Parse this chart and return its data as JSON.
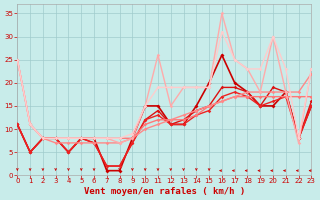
{
  "background_color": "#c8ecea",
  "grid_color": "#a0cccc",
  "x_min": 0,
  "x_max": 23,
  "y_min": 0,
  "y_max": 37,
  "y_ticks": [
    0,
    5,
    10,
    15,
    20,
    25,
    30,
    35
  ],
  "x_ticks": [
    0,
    1,
    2,
    3,
    4,
    5,
    6,
    7,
    8,
    9,
    10,
    11,
    12,
    13,
    14,
    15,
    16,
    17,
    18,
    19,
    20,
    21,
    22,
    23
  ],
  "xlabel": "Vent moyen/en rafales ( km/h )",
  "series": [
    {
      "x": [
        0,
        1,
        2,
        3,
        4,
        5,
        6,
        7,
        8,
        9,
        10,
        11,
        12,
        13,
        14,
        15,
        16,
        17,
        18,
        19,
        20,
        21,
        22,
        23
      ],
      "y": [
        11,
        5,
        8,
        8,
        5,
        8,
        8,
        1,
        1,
        8,
        15,
        15,
        11,
        11,
        15,
        20,
        26,
        20,
        18,
        15,
        15,
        18,
        8,
        15
      ],
      "color": "#cc0000",
      "lw": 1.2,
      "ms": 2.0
    },
    {
      "x": [
        0,
        1,
        2,
        3,
        4,
        5,
        6,
        7,
        8,
        9,
        10,
        11,
        12,
        13,
        14,
        15,
        16,
        17,
        18,
        19,
        20,
        21,
        22,
        23
      ],
      "y": [
        11,
        5,
        8,
        8,
        5,
        8,
        7,
        2,
        2,
        7,
        12,
        14,
        11,
        12,
        14,
        15,
        19,
        19,
        18,
        15,
        19,
        18,
        8,
        16
      ],
      "color": "#dd1111",
      "lw": 1.0,
      "ms": 1.8
    },
    {
      "x": [
        0,
        1,
        2,
        3,
        4,
        5,
        6,
        7,
        8,
        9,
        10,
        11,
        12,
        13,
        14,
        15,
        16,
        17,
        18,
        19,
        20,
        21,
        22,
        23
      ],
      "y": [
        11,
        5,
        8,
        8,
        5,
        8,
        7,
        2,
        2,
        7,
        12,
        13,
        11,
        11,
        13,
        14,
        17,
        18,
        17,
        15,
        16,
        17,
        8,
        15
      ],
      "color": "#ee2222",
      "lw": 1.0,
      "ms": 1.8
    },
    {
      "x": [
        0,
        1,
        2,
        3,
        4,
        5,
        6,
        7,
        8,
        9,
        10,
        11,
        12,
        13,
        14,
        15,
        16,
        17,
        18,
        19,
        20,
        21,
        22,
        23
      ],
      "y": [
        25,
        11,
        8,
        8,
        8,
        8,
        8,
        8,
        8,
        8,
        11,
        12,
        12,
        12,
        13,
        15,
        16,
        17,
        17,
        17,
        17,
        17,
        17,
        17
      ],
      "color": "#ff7777",
      "lw": 1.0,
      "ms": 1.8
    },
    {
      "x": [
        0,
        1,
        2,
        3,
        4,
        5,
        6,
        7,
        8,
        9,
        10,
        11,
        12,
        13,
        14,
        15,
        16,
        17,
        18,
        19,
        20,
        21,
        22,
        23
      ],
      "y": [
        25,
        11,
        8,
        7,
        7,
        7,
        7,
        7,
        7,
        8,
        10,
        11,
        12,
        13,
        14,
        15,
        16,
        17,
        18,
        18,
        18,
        18,
        18,
        22
      ],
      "color": "#ff8888",
      "lw": 1.0,
      "ms": 1.8
    },
    {
      "x": [
        0,
        1,
        2,
        3,
        4,
        5,
        6,
        7,
        8,
        9,
        10,
        11,
        12,
        13,
        14,
        15,
        16,
        17,
        18,
        19,
        20,
        21,
        22,
        23
      ],
      "y": [
        25,
        11,
        8,
        8,
        8,
        8,
        8,
        8,
        7,
        8,
        15,
        26,
        15,
        19,
        19,
        19,
        35,
        25,
        23,
        18,
        30,
        18,
        7,
        23
      ],
      "color": "#ffaaaa",
      "lw": 1.0,
      "ms": 1.8
    },
    {
      "x": [
        0,
        1,
        2,
        3,
        4,
        5,
        6,
        7,
        8,
        9,
        10,
        11,
        12,
        13,
        14,
        15,
        16,
        17,
        18,
        19,
        20,
        21,
        22,
        23
      ],
      "y": [
        25,
        11,
        8,
        8,
        8,
        8,
        8,
        8,
        8,
        9,
        15,
        19,
        19,
        19,
        19,
        19,
        31,
        25,
        23,
        23,
        30,
        23,
        8,
        23
      ],
      "color": "#ffcccc",
      "lw": 1.0,
      "ms": 1.8
    }
  ],
  "down_arrows_x": [
    0,
    1,
    2,
    3,
    4,
    5,
    6,
    7,
    8,
    9,
    10,
    11,
    12,
    13,
    14,
    15
  ],
  "left_arrows_x": [
    16,
    17,
    18,
    19,
    20,
    21,
    22,
    23
  ],
  "tick_fontsize": 5.0,
  "axis_fontsize": 6.5
}
